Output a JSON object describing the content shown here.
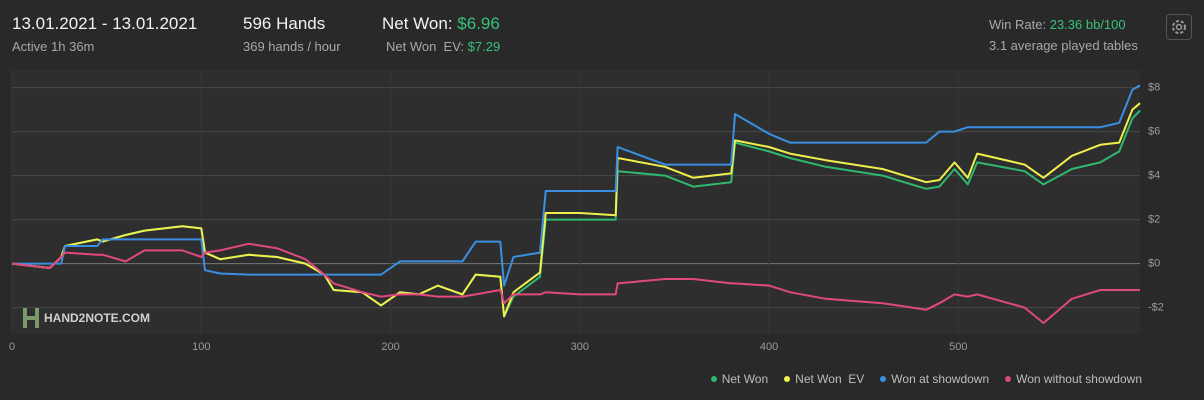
{
  "header": {
    "date_range": "13.01.2021 - 13.01.2021",
    "active": "Active 1h 36m",
    "hands": "596 Hands",
    "hands_per_hour": "369 hands / hour",
    "net_won_label": "Net Won:",
    "net_won_value": "$6.96",
    "net_won_ev_label": "Net Won  EV:",
    "net_won_ev_value": "$7.29",
    "win_rate_label": "Win Rate:",
    "win_rate_value": "23.36 bb/100",
    "tables": "3.1 average played tables"
  },
  "watermark": "HAND2NOTE.COM",
  "chart_data": {
    "type": "line",
    "x": [
      0,
      20,
      26,
      28,
      45,
      48,
      60,
      70,
      90,
      100,
      102,
      110,
      125,
      140,
      155,
      165,
      170,
      185,
      195,
      205,
      215,
      225,
      238,
      245,
      258,
      260,
      265,
      279,
      282,
      300,
      319,
      320,
      345,
      360,
      380,
      382,
      400,
      411,
      430,
      460,
      483,
      490,
      498,
      505,
      510,
      535,
      545,
      560,
      575,
      585,
      592,
      596
    ],
    "xlim": [
      0,
      596
    ],
    "xticks": [
      0,
      100,
      200,
      300,
      400,
      500
    ],
    "ylim": [
      -3.2,
      8.8
    ],
    "yticks": [
      {
        "value": -2,
        "label": "-$2"
      },
      {
        "value": 0,
        "label": "$0"
      },
      {
        "value": 2,
        "label": "$2"
      },
      {
        "value": 4,
        "label": "$4"
      },
      {
        "value": 6,
        "label": "$6"
      },
      {
        "value": 8,
        "label": "$8"
      }
    ],
    "grid": true,
    "series": [
      {
        "name": "Net Won",
        "color": "#2fb86e",
        "values": [
          0,
          -0.2,
          0.3,
          0.8,
          1.1,
          1.0,
          1.3,
          1.5,
          1.7,
          1.6,
          0.5,
          0.2,
          0.4,
          0.3,
          0.0,
          -0.5,
          -1.2,
          -1.3,
          -1.9,
          -1.3,
          -1.4,
          -1.0,
          -1.4,
          -0.5,
          -0.6,
          -2.4,
          -1.5,
          -0.6,
          2.0,
          2.0,
          2.0,
          4.2,
          4.0,
          3.5,
          3.7,
          5.5,
          5.1,
          4.8,
          4.4,
          4.0,
          3.4,
          3.5,
          4.3,
          3.6,
          4.6,
          4.2,
          3.6,
          4.3,
          4.6,
          5.1,
          6.6,
          6.96
        ]
      },
      {
        "name": "Net Won  EV",
        "color": "#f0f04c",
        "values": [
          0,
          -0.2,
          0.3,
          0.8,
          1.1,
          1.0,
          1.3,
          1.5,
          1.7,
          1.6,
          0.5,
          0.2,
          0.4,
          0.3,
          0.0,
          -0.5,
          -1.2,
          -1.3,
          -1.9,
          -1.3,
          -1.4,
          -1.0,
          -1.4,
          -0.5,
          -0.6,
          -2.4,
          -1.3,
          -0.4,
          2.3,
          2.3,
          2.2,
          4.8,
          4.4,
          3.9,
          4.1,
          5.6,
          5.3,
          5.0,
          4.7,
          4.3,
          3.7,
          3.8,
          4.6,
          3.9,
          5.0,
          4.5,
          3.9,
          4.9,
          5.4,
          5.5,
          7.0,
          7.29
        ]
      },
      {
        "name": "Won at showdown",
        "color": "#3b8fe2",
        "values": [
          0,
          0,
          0,
          0.8,
          0.8,
          1.1,
          1.1,
          1.1,
          1.1,
          1.1,
          -0.3,
          -0.45,
          -0.5,
          -0.5,
          -0.5,
          -0.5,
          -0.5,
          -0.5,
          -0.5,
          0.1,
          0.1,
          0.1,
          0.1,
          1.0,
          1.0,
          -1.0,
          0.3,
          0.5,
          3.3,
          3.3,
          3.3,
          5.3,
          4.5,
          4.5,
          4.5,
          6.8,
          5.9,
          5.5,
          5.5,
          5.5,
          5.5,
          6.0,
          6.0,
          6.2,
          6.2,
          6.2,
          6.2,
          6.2,
          6.2,
          6.4,
          7.9,
          8.1
        ]
      },
      {
        "name": "Won without showdown",
        "color": "#e0487f",
        "values": [
          0,
          -0.2,
          0.3,
          0.5,
          0.4,
          0.4,
          0.1,
          0.6,
          0.6,
          0.3,
          0.5,
          0.6,
          0.9,
          0.7,
          0.2,
          -0.5,
          -0.9,
          -1.3,
          -1.5,
          -1.4,
          -1.4,
          -1.5,
          -1.5,
          -1.4,
          -1.2,
          -1.8,
          -1.4,
          -1.4,
          -1.3,
          -1.4,
          -1.4,
          -0.9,
          -0.7,
          -0.7,
          -0.9,
          -0.9,
          -1.0,
          -1.3,
          -1.6,
          -1.8,
          -2.1,
          -1.8,
          -1.4,
          -1.5,
          -1.4,
          -2.0,
          -2.7,
          -1.6,
          -1.2,
          -1.2,
          -1.2,
          -1.2
        ]
      }
    ]
  }
}
